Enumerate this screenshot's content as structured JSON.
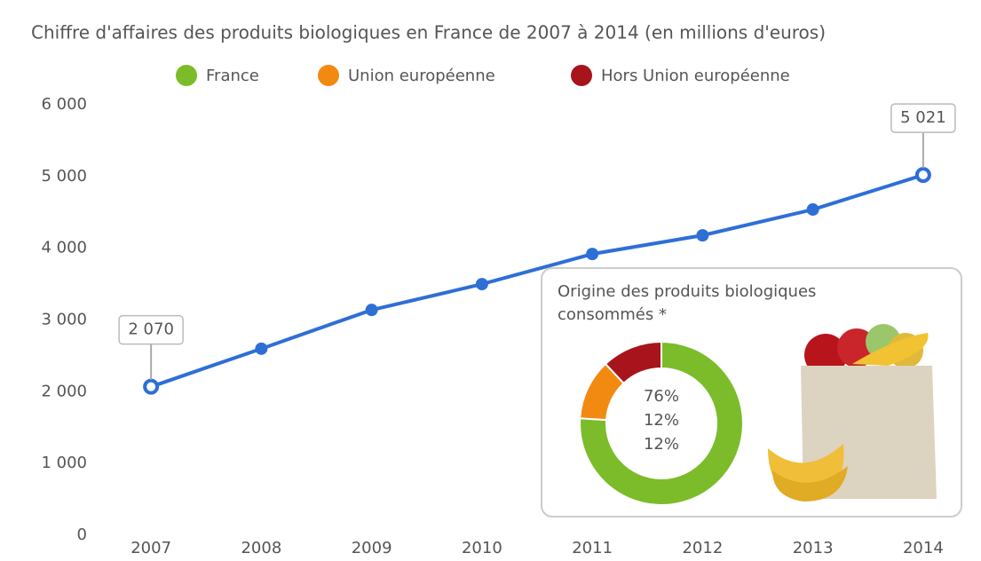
{
  "chart_data": [
    {
      "type": "line",
      "title": "Chiffre d'affaires des produits biologiques en France de 2007 à 2014 (en millions d'euros)",
      "categories": [
        "2007",
        "2008",
        "2009",
        "2010",
        "2011",
        "2012",
        "2013",
        "2014"
      ],
      "series": [
        {
          "color": "#2e6fd6",
          "values": [
            2070,
            2600,
            3140,
            3500,
            3920,
            4180,
            4540,
            5021
          ],
          "value_labels": [
            "2 070",
            null,
            null,
            null,
            null,
            null,
            null,
            "5 021"
          ]
        }
      ],
      "ylim": [
        0,
        6000
      ],
      "yticks": [
        0,
        {
          "value": 1000,
          "label": "1 000"
        },
        {
          "value": 2000,
          "label": "2 000"
        },
        {
          "value": 3000,
          "label": "3 000"
        },
        {
          "value": 4000,
          "label": "4 000"
        },
        {
          "value": 5000,
          "label": "5 000"
        },
        {
          "value": 6000,
          "label": "6 000"
        }
      ],
      "band_colors": [
        "#e8e8e8",
        "#ffffff"
      ]
    },
    {
      "type": "pie",
      "title": "Origine des produits biologiques consommés *",
      "categories": [
        "France",
        "Union européenne",
        "Hors Union européenne"
      ],
      "values": [
        76,
        12,
        12
      ],
      "value_labels": [
        "76%",
        "12%",
        "12%"
      ],
      "colors": [
        "#7cbc2a",
        "#f28a12",
        "#a8141c"
      ]
    }
  ]
}
